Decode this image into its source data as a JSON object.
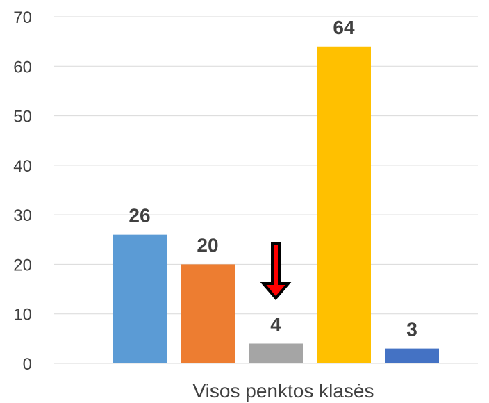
{
  "chart_data": {
    "type": "bar",
    "categories": [
      "Visos penktos klasės"
    ],
    "series": [
      {
        "values": [
          26
        ],
        "color": "#5b9bd5"
      },
      {
        "values": [
          20
        ],
        "color": "#ed7d31"
      },
      {
        "values": [
          4
        ],
        "color": "#a5a5a5"
      },
      {
        "values": [
          64
        ],
        "color": "#ffc000"
      },
      {
        "values": [
          3
        ],
        "color": "#4472c4"
      }
    ],
    "ylim": [
      0,
      70
    ],
    "yticks": [
      0,
      10,
      20,
      30,
      40,
      50,
      60,
      70
    ],
    "grid": true,
    "legend": "none",
    "data_labels": true,
    "annotation": {
      "type": "arrow",
      "direction": "down",
      "points_to_series": 2,
      "fill": "#ff0000",
      "outline": "#000000"
    }
  }
}
